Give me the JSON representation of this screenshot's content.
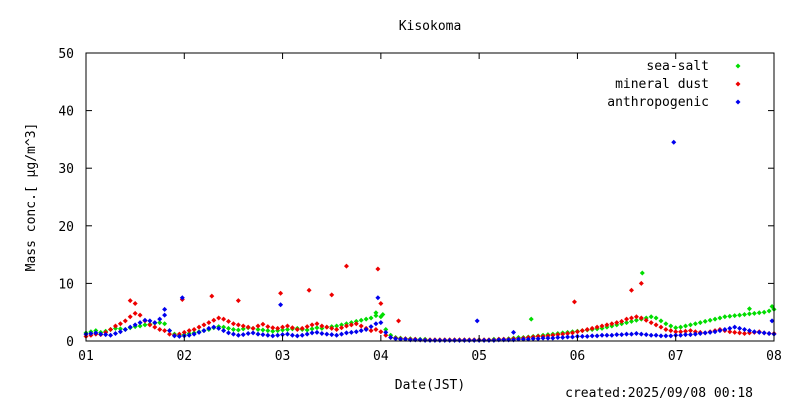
{
  "chart_data": {
    "type": "scatter",
    "title": "Kisokoma",
    "xlabel": "Date(JST)",
    "ylabel": "Mass conc.[ μg/m^3]",
    "footer": "created:2025/09/08 00:18",
    "x_ticks": [
      "01",
      "02",
      "03",
      "04",
      "05",
      "06",
      "07",
      "08"
    ],
    "xlim": [
      1,
      8
    ],
    "ylim": [
      0,
      50
    ],
    "y_ticks": [
      0,
      10,
      20,
      30,
      40,
      50
    ],
    "grid": false,
    "legend_position": "top-right",
    "series": [
      {
        "name": "sea-salt",
        "color": "#00dd00",
        "x": [
          1.0,
          1.05,
          1.1,
          1.15,
          1.2,
          1.25,
          1.3,
          1.35,
          1.4,
          1.45,
          1.5,
          1.55,
          1.6,
          1.65,
          1.7,
          1.75,
          1.8,
          1.85,
          1.9,
          1.95,
          2.0,
          2.05,
          2.1,
          2.15,
          2.2,
          2.25,
          2.3,
          2.35,
          2.4,
          2.45,
          2.5,
          2.55,
          2.6,
          2.65,
          2.7,
          2.75,
          2.8,
          2.85,
          2.9,
          2.95,
          3.0,
          3.05,
          3.1,
          3.15,
          3.2,
          3.25,
          3.3,
          3.35,
          3.4,
          3.45,
          3.5,
          3.55,
          3.6,
          3.65,
          3.7,
          3.75,
          3.8,
          3.85,
          3.9,
          3.95,
          4.0,
          4.05,
          4.1,
          4.15,
          4.2,
          4.25,
          4.3,
          4.35,
          4.4,
          4.45,
          4.5,
          4.55,
          4.6,
          4.65,
          4.7,
          4.75,
          4.8,
          4.85,
          4.9,
          4.95,
          5.0,
          5.05,
          5.1,
          5.15,
          5.2,
          5.25,
          5.3,
          5.35,
          5.4,
          5.45,
          5.5,
          5.55,
          5.6,
          5.65,
          5.7,
          5.75,
          5.8,
          5.85,
          5.9,
          5.95,
          6.0,
          6.05,
          6.1,
          6.15,
          6.2,
          6.25,
          6.3,
          6.35,
          6.4,
          6.45,
          6.5,
          6.55,
          6.6,
          6.65,
          6.7,
          6.75,
          6.8,
          6.85,
          6.9,
          6.95,
          7.0,
          7.05,
          7.1,
          7.15,
          7.2,
          7.25,
          7.3,
          7.35,
          7.4,
          7.45,
          7.5,
          7.55,
          7.6,
          7.65,
          7.7,
          7.75,
          7.8,
          7.85,
          7.9,
          7.95,
          8.0,
          3.95,
          4.02,
          5.53,
          6.66,
          7.75,
          7.98
        ],
        "y": [
          1.4,
          1.6,
          1.8,
          1.5,
          1.7,
          2.0,
          2.2,
          2.1,
          2.0,
          2.3,
          2.5,
          2.6,
          2.8,
          2.9,
          3.1,
          3.2,
          3.0,
          1.8,
          1.2,
          1.0,
          1.1,
          1.3,
          1.4,
          1.6,
          1.8,
          2.0,
          2.3,
          2.5,
          2.4,
          2.2,
          2.0,
          1.9,
          2.1,
          2.3,
          2.2,
          2.0,
          1.9,
          1.8,
          1.7,
          1.8,
          1.9,
          2.0,
          2.1,
          2.2,
          2.0,
          1.9,
          2.1,
          2.3,
          2.2,
          2.4,
          2.5,
          2.6,
          2.8,
          3.0,
          3.2,
          3.4,
          3.6,
          3.8,
          4.0,
          4.4,
          4.2,
          2.0,
          1.0,
          0.6,
          0.5,
          0.4,
          0.4,
          0.3,
          0.3,
          0.3,
          0.2,
          0.2,
          0.2,
          0.2,
          0.2,
          0.2,
          0.2,
          0.2,
          0.2,
          0.2,
          0.2,
          0.2,
          0.2,
          0.3,
          0.3,
          0.3,
          0.4,
          0.5,
          0.6,
          0.6,
          0.7,
          0.8,
          0.9,
          1.0,
          1.1,
          1.2,
          1.3,
          1.4,
          1.5,
          1.6,
          1.7,
          1.8,
          1.9,
          2.0,
          2.1,
          2.2,
          2.4,
          2.6,
          2.8,
          3.0,
          3.2,
          3.4,
          3.6,
          3.8,
          4.0,
          4.2,
          4.0,
          3.5,
          3.0,
          2.6,
          2.3,
          2.4,
          2.6,
          2.8,
          3.0,
          3.2,
          3.4,
          3.6,
          3.8,
          4.0,
          4.2,
          4.3,
          4.4,
          4.5,
          4.6,
          4.7,
          4.8,
          4.9,
          5.0,
          5.2,
          5.5,
          4.9,
          4.6,
          3.8,
          11.8,
          5.6,
          6.0
        ]
      },
      {
        "name": "mineral dust",
        "color": "#ee0000",
        "x": [
          1.0,
          1.05,
          1.1,
          1.15,
          1.2,
          1.25,
          1.3,
          1.35,
          1.4,
          1.45,
          1.5,
          1.55,
          1.6,
          1.65,
          1.7,
          1.75,
          1.8,
          1.85,
          1.9,
          1.95,
          2.0,
          2.05,
          2.1,
          2.15,
          2.2,
          2.25,
          2.3,
          2.35,
          2.4,
          2.45,
          2.5,
          2.55,
          2.6,
          2.65,
          2.7,
          2.75,
          2.8,
          2.85,
          2.9,
          2.95,
          3.0,
          3.05,
          3.1,
          3.15,
          3.2,
          3.25,
          3.3,
          3.35,
          3.4,
          3.45,
          3.5,
          3.55,
          3.6,
          3.65,
          3.7,
          3.75,
          3.8,
          3.85,
          3.9,
          3.95,
          4.0,
          4.05,
          4.1,
          4.15,
          4.2,
          4.25,
          4.3,
          4.35,
          4.4,
          4.45,
          4.5,
          4.55,
          4.6,
          4.65,
          4.7,
          4.75,
          4.8,
          4.85,
          4.9,
          4.95,
          5.0,
          5.05,
          5.1,
          5.15,
          5.2,
          5.25,
          5.3,
          5.35,
          5.4,
          5.45,
          5.5,
          5.55,
          5.6,
          5.65,
          5.7,
          5.75,
          5.8,
          5.85,
          5.9,
          5.95,
          6.0,
          6.05,
          6.1,
          6.15,
          6.2,
          6.25,
          6.3,
          6.35,
          6.4,
          6.45,
          6.5,
          6.55,
          6.6,
          6.65,
          6.7,
          6.75,
          6.8,
          6.85,
          6.9,
          6.95,
          7.0,
          7.05,
          7.1,
          7.15,
          7.2,
          7.25,
          7.3,
          7.35,
          7.4,
          7.45,
          7.5,
          7.55,
          7.6,
          7.65,
          7.7,
          7.75,
          7.8,
          7.85,
          7.9,
          7.95,
          8.0,
          1.45,
          1.5,
          1.98,
          2.28,
          2.55,
          2.98,
          3.27,
          3.5,
          3.65,
          3.97,
          4.0,
          4.18,
          5.97,
          6.55,
          6.65
        ],
        "y": [
          0.8,
          1.0,
          1.2,
          1.1,
          1.5,
          2.0,
          2.6,
          3.0,
          3.5,
          4.2,
          4.8,
          4.5,
          3.5,
          2.8,
          2.4,
          2.0,
          1.8,
          1.2,
          1.0,
          1.2,
          1.5,
          1.8,
          2.0,
          2.4,
          2.8,
          3.2,
          3.6,
          4.0,
          3.8,
          3.4,
          3.0,
          2.8,
          2.6,
          2.4,
          2.2,
          2.6,
          2.9,
          2.5,
          2.3,
          2.2,
          2.4,
          2.6,
          2.3,
          2.0,
          2.2,
          2.5,
          2.8,
          3.0,
          2.6,
          2.4,
          2.2,
          2.0,
          2.3,
          2.6,
          2.8,
          3.0,
          2.6,
          2.2,
          1.8,
          2.0,
          1.6,
          1.0,
          0.6,
          0.5,
          0.4,
          0.4,
          0.3,
          0.3,
          0.2,
          0.2,
          0.2,
          0.2,
          0.2,
          0.2,
          0.2,
          0.2,
          0.2,
          0.2,
          0.2,
          0.2,
          0.2,
          0.2,
          0.2,
          0.2,
          0.3,
          0.3,
          0.3,
          0.4,
          0.4,
          0.5,
          0.6,
          0.7,
          0.8,
          0.8,
          0.9,
          1.0,
          1.1,
          1.2,
          1.3,
          1.4,
          1.6,
          1.8,
          2.0,
          2.2,
          2.4,
          2.6,
          2.8,
          3.0,
          3.2,
          3.4,
          3.8,
          4.0,
          4.2,
          4.0,
          3.6,
          3.2,
          2.8,
          2.4,
          2.0,
          1.8,
          1.6,
          1.6,
          1.7,
          1.8,
          1.6,
          1.5,
          1.4,
          1.6,
          1.8,
          2.0,
          1.8,
          1.6,
          1.5,
          1.4,
          1.3,
          1.4,
          1.5,
          1.6,
          1.4,
          1.3,
          1.3,
          7.0,
          6.5,
          7.2,
          7.8,
          7.0,
          8.3,
          8.8,
          8.0,
          13.0,
          12.5,
          6.5,
          3.5,
          6.8,
          8.8,
          10.0
        ]
      },
      {
        "name": "anthropogenic",
        "color": "#0000ee",
        "x": [
          1.0,
          1.05,
          1.1,
          1.15,
          1.2,
          1.25,
          1.3,
          1.35,
          1.4,
          1.45,
          1.5,
          1.55,
          1.6,
          1.65,
          1.7,
          1.75,
          1.8,
          1.85,
          1.9,
          1.95,
          2.0,
          2.05,
          2.1,
          2.15,
          2.2,
          2.25,
          2.3,
          2.35,
          2.4,
          2.45,
          2.5,
          2.55,
          2.6,
          2.65,
          2.7,
          2.75,
          2.8,
          2.85,
          2.9,
          2.95,
          3.0,
          3.05,
          3.1,
          3.15,
          3.2,
          3.25,
          3.3,
          3.35,
          3.4,
          3.45,
          3.5,
          3.55,
          3.6,
          3.65,
          3.7,
          3.75,
          3.8,
          3.85,
          3.9,
          3.95,
          4.0,
          4.05,
          4.1,
          4.15,
          4.2,
          4.25,
          4.3,
          4.35,
          4.4,
          4.45,
          4.5,
          4.55,
          4.6,
          4.65,
          4.7,
          4.75,
          4.8,
          4.85,
          4.9,
          4.95,
          5.0,
          5.05,
          5.1,
          5.15,
          5.2,
          5.25,
          5.3,
          5.35,
          5.4,
          5.45,
          5.5,
          5.55,
          5.6,
          5.65,
          5.7,
          5.75,
          5.8,
          5.85,
          5.9,
          5.95,
          6.0,
          6.05,
          6.1,
          6.15,
          6.2,
          6.25,
          6.3,
          6.35,
          6.4,
          6.45,
          6.5,
          6.55,
          6.6,
          6.65,
          6.7,
          6.75,
          6.8,
          6.85,
          6.9,
          6.95,
          7.0,
          7.05,
          7.1,
          7.15,
          7.2,
          7.25,
          7.3,
          7.35,
          7.4,
          7.45,
          7.5,
          7.55,
          7.6,
          7.65,
          7.7,
          7.75,
          7.8,
          7.85,
          7.9,
          7.95,
          8.0,
          1.8,
          1.98,
          2.98,
          3.97,
          4.98,
          5.35,
          6.98,
          7.98
        ],
        "y": [
          1.2,
          1.3,
          1.4,
          1.2,
          1.1,
          1.0,
          1.3,
          1.6,
          2.0,
          2.4,
          2.8,
          3.2,
          3.6,
          3.5,
          3.2,
          3.8,
          4.5,
          1.8,
          0.9,
          0.8,
          0.9,
          1.0,
          1.2,
          1.5,
          1.8,
          2.2,
          2.4,
          2.2,
          1.8,
          1.4,
          1.2,
          1.0,
          1.1,
          1.3,
          1.4,
          1.2,
          1.1,
          1.0,
          0.9,
          1.0,
          1.1,
          1.2,
          1.0,
          0.9,
          1.0,
          1.2,
          1.4,
          1.5,
          1.3,
          1.2,
          1.1,
          1.0,
          1.2,
          1.4,
          1.5,
          1.6,
          1.8,
          2.0,
          2.5,
          3.0,
          3.2,
          1.5,
          0.6,
          0.4,
          0.3,
          0.3,
          0.2,
          0.2,
          0.2,
          0.1,
          0.1,
          0.1,
          0.1,
          0.1,
          0.1,
          0.1,
          0.1,
          0.1,
          0.1,
          0.1,
          0.1,
          0.1,
          0.1,
          0.1,
          0.2,
          0.2,
          0.2,
          0.2,
          0.3,
          0.3,
          0.3,
          0.4,
          0.4,
          0.5,
          0.5,
          0.5,
          0.6,
          0.6,
          0.7,
          0.7,
          0.8,
          0.8,
          0.8,
          0.9,
          0.9,
          1.0,
          1.0,
          1.0,
          1.1,
          1.1,
          1.2,
          1.2,
          1.3,
          1.2,
          1.1,
          1.0,
          1.0,
          0.9,
          0.9,
          0.9,
          1.0,
          1.0,
          1.1,
          1.1,
          1.2,
          1.3,
          1.4,
          1.5,
          1.6,
          1.8,
          2.0,
          2.2,
          2.4,
          2.2,
          2.0,
          1.8,
          1.6,
          1.5,
          1.4,
          1.3,
          1.2,
          5.5,
          7.5,
          6.3,
          7.5,
          3.5,
          1.5,
          34.5,
          3.5
        ]
      }
    ]
  }
}
